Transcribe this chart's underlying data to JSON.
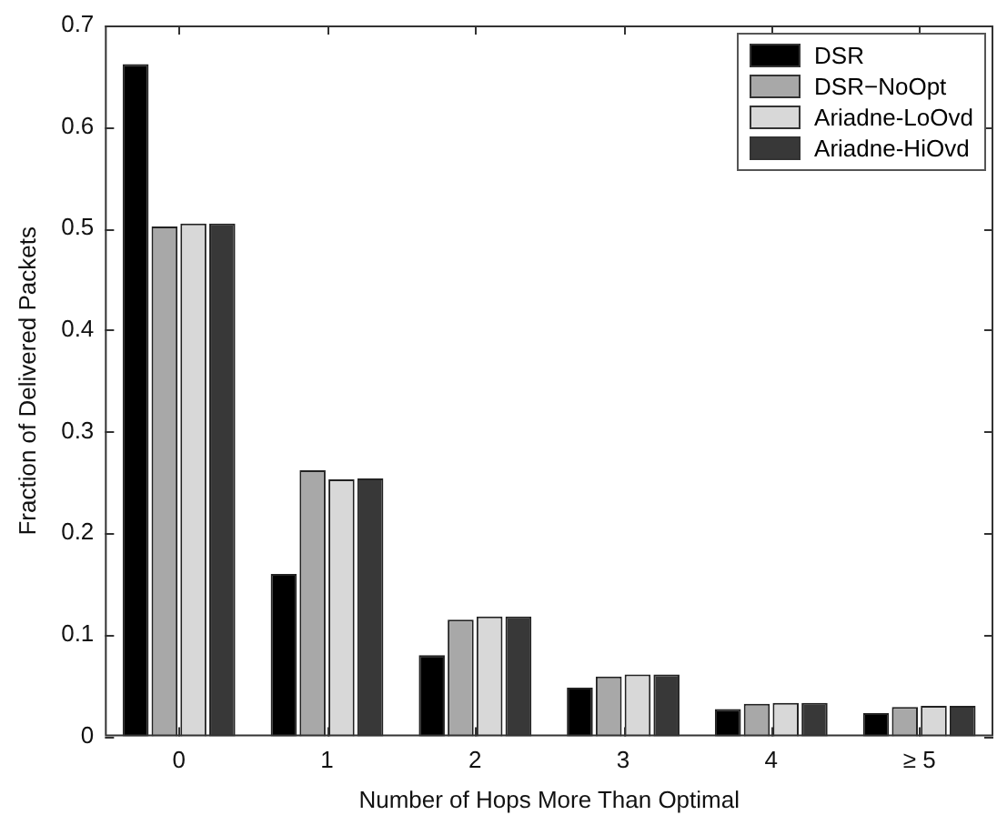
{
  "chart_data": {
    "type": "bar",
    "xlabel": "Number of Hops More Than Optimal",
    "ylabel": "Fraction of Delivered Packets",
    "categories": [
      "0",
      "1",
      "2",
      "3",
      "4",
      "≥ 5"
    ],
    "series": [
      {
        "name": "DSR",
        "color": "#000000",
        "values": [
          0.662,
          0.16,
          0.08,
          0.048,
          0.027,
          0.023
        ]
      },
      {
        "name": "DSR−NoOpt",
        "color": "#a8a8a8",
        "values": [
          0.502,
          0.262,
          0.115,
          0.059,
          0.032,
          0.029
        ]
      },
      {
        "name": "Ariadne-LoOvd",
        "color": "#d8d8d8",
        "values": [
          0.505,
          0.253,
          0.118,
          0.061,
          0.033,
          0.03
        ]
      },
      {
        "name": "Ariadne-HiOvd",
        "color": "#383838",
        "values": [
          0.505,
          0.254,
          0.118,
          0.061,
          0.033,
          0.03
        ]
      }
    ],
    "ylim": [
      0,
      0.7
    ],
    "yticks": [
      0,
      0.1,
      0.2,
      0.3,
      0.4,
      0.5,
      0.6,
      0.7
    ],
    "grid": false,
    "legend": "top right"
  }
}
